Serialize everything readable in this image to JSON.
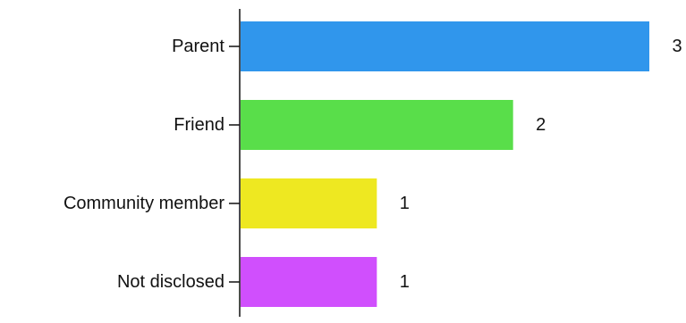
{
  "chart_data": {
    "type": "bar",
    "orientation": "horizontal",
    "categories": [
      "Parent",
      "Friend",
      "Community member",
      "Not disclosed"
    ],
    "values": [
      3,
      2,
      1,
      1
    ],
    "bar_colors": [
      "#3096ec",
      "#59de4a",
      "#eee821",
      "#d04ffd"
    ],
    "xlim": [
      0,
      3
    ],
    "title": "",
    "xlabel": "",
    "ylabel": "",
    "grid": false,
    "legend": "none",
    "data_labels": true
  }
}
